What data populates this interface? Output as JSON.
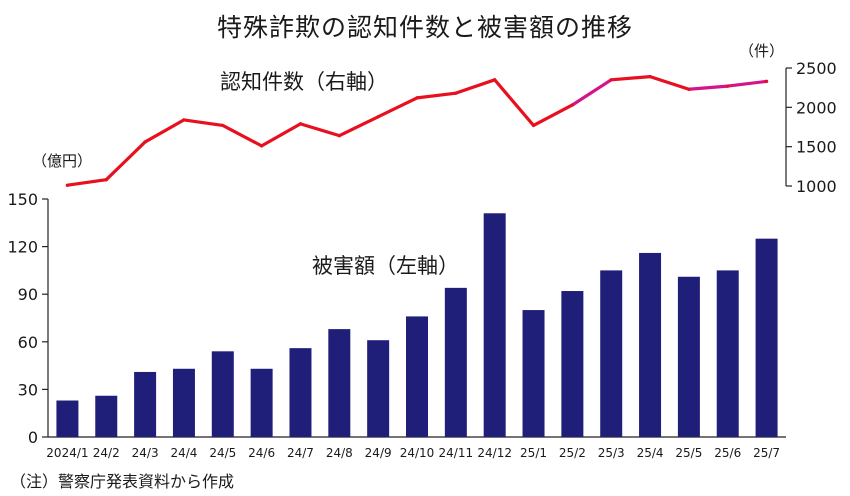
{
  "title": "特殊詐欺の認知件数と被害額の推移",
  "note": "（注）警察庁発表資料から作成",
  "colors": {
    "bar": "#1f1f7a",
    "line": "#e8101e",
    "line_highlight": "#d4148c",
    "axis": "#222222",
    "text": "#1a1a1a"
  },
  "chart_data": {
    "type": "bar",
    "categories": [
      "2024/1",
      "24/2",
      "24/3",
      "24/4",
      "24/5",
      "24/6",
      "24/7",
      "24/8",
      "24/9",
      "24/10",
      "24/11",
      "24/12",
      "25/1",
      "25/2",
      "25/3",
      "25/4",
      "25/5",
      "25/6",
      "25/7"
    ],
    "left_axis": {
      "unit": "（億円）",
      "ylim": [
        0,
        150
      ],
      "ticks": [
        0,
        30,
        60,
        90,
        120,
        150
      ]
    },
    "right_axis": {
      "unit": "（件）",
      "ylim": [
        1000,
        2500
      ],
      "ticks": [
        1000,
        1500,
        2000,
        2500
      ]
    },
    "series": [
      {
        "name": "被害額（左軸）",
        "type": "bar",
        "axis": "left",
        "values": [
          23,
          26,
          41,
          43,
          54,
          43,
          56,
          68,
          61,
          76,
          94,
          141,
          80,
          92,
          105,
          116,
          101,
          105,
          125
        ]
      },
      {
        "name": "認知件数（右軸）",
        "type": "line",
        "axis": "right",
        "values": [
          1010,
          1080,
          1560,
          1840,
          1770,
          1510,
          1790,
          1640,
          1880,
          2120,
          2180,
          2350,
          1770,
          2030,
          2350,
          2390,
          2230,
          2270,
          2330
        ]
      }
    ],
    "grid": false
  }
}
